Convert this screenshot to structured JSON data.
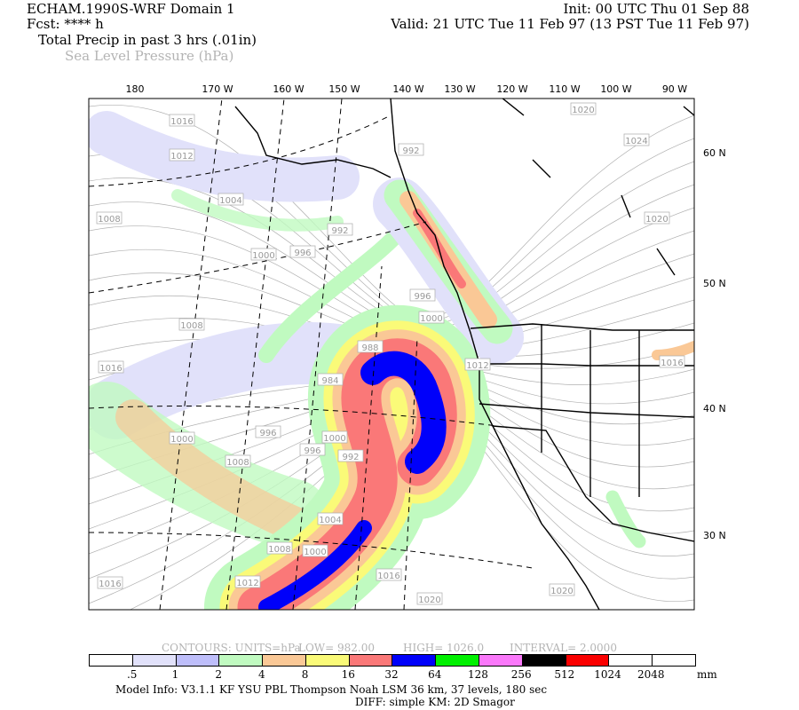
{
  "header": {
    "model": "ECHAM.1990S-WRF Domain 1",
    "init": "Init: 00 UTC Thu 01 Sep 88",
    "fcst": "Fcst: **** h",
    "valid": "Valid: 21 UTC Tue 11 Feb 97 (13 PST Tue 11 Feb 97)",
    "field1": "Total Precip in past 3 hrs (.01in)",
    "field2": "Sea Level Pressure (hPa)"
  },
  "map": {
    "lon_labels": [
      "180",
      "170 W",
      "160 W",
      "150 W",
      "140 W",
      "130 W",
      "120 W",
      "110 W",
      "100 W",
      "90 W"
    ],
    "lat_labels": [
      "60 N",
      "50 N",
      "40 N",
      "30 N"
    ],
    "pressure_labels": [
      "1016",
      "1012",
      "1004",
      "992",
      "992",
      "996",
      "1000",
      "1008",
      "1008",
      "1016",
      "996",
      "1000",
      "988",
      "984",
      "1012",
      "1020",
      "1024",
      "1020",
      "1016",
      "996",
      "1000",
      "992",
      "996",
      "1000",
      "1008",
      "1004",
      "1008",
      "1000",
      "1016",
      "1012",
      "1016",
      "1020",
      "1020"
    ],
    "colors": {
      "land_line": "#000000",
      "isobar": "#a0a0a0",
      "graticule": "#000000"
    }
  },
  "contours": {
    "units": "CONTOURS:  UNITS=hPa",
    "low": "LOW=   982.00",
    "high": "HIGH=  1026.0",
    "interval": "INTERVAL=   2.0000"
  },
  "legend": {
    "colors": [
      "#ffffff",
      "#e1e1fa",
      "#bebefa",
      "#c0fac0",
      "#fac896",
      "#fafa78",
      "#fa7878",
      "#0000fa",
      "#00f000",
      "#fa78fa",
      "#000000",
      "#fa0000",
      "#ffffff",
      "#ffffff"
    ],
    "labels": [
      ".5",
      "1",
      "2",
      "4",
      "8",
      "16",
      "32",
      "64",
      "128",
      "256",
      "512",
      "1024",
      "2048"
    ],
    "unit": "mm"
  },
  "footer": {
    "model_info": "Model Info: V3.1.1    KF        YSU PBL   Thompson     Noah LSM  36 km,    37 levels,  180 sec",
    "diff": "DIFF: simple KM: 2D Smagor"
  }
}
